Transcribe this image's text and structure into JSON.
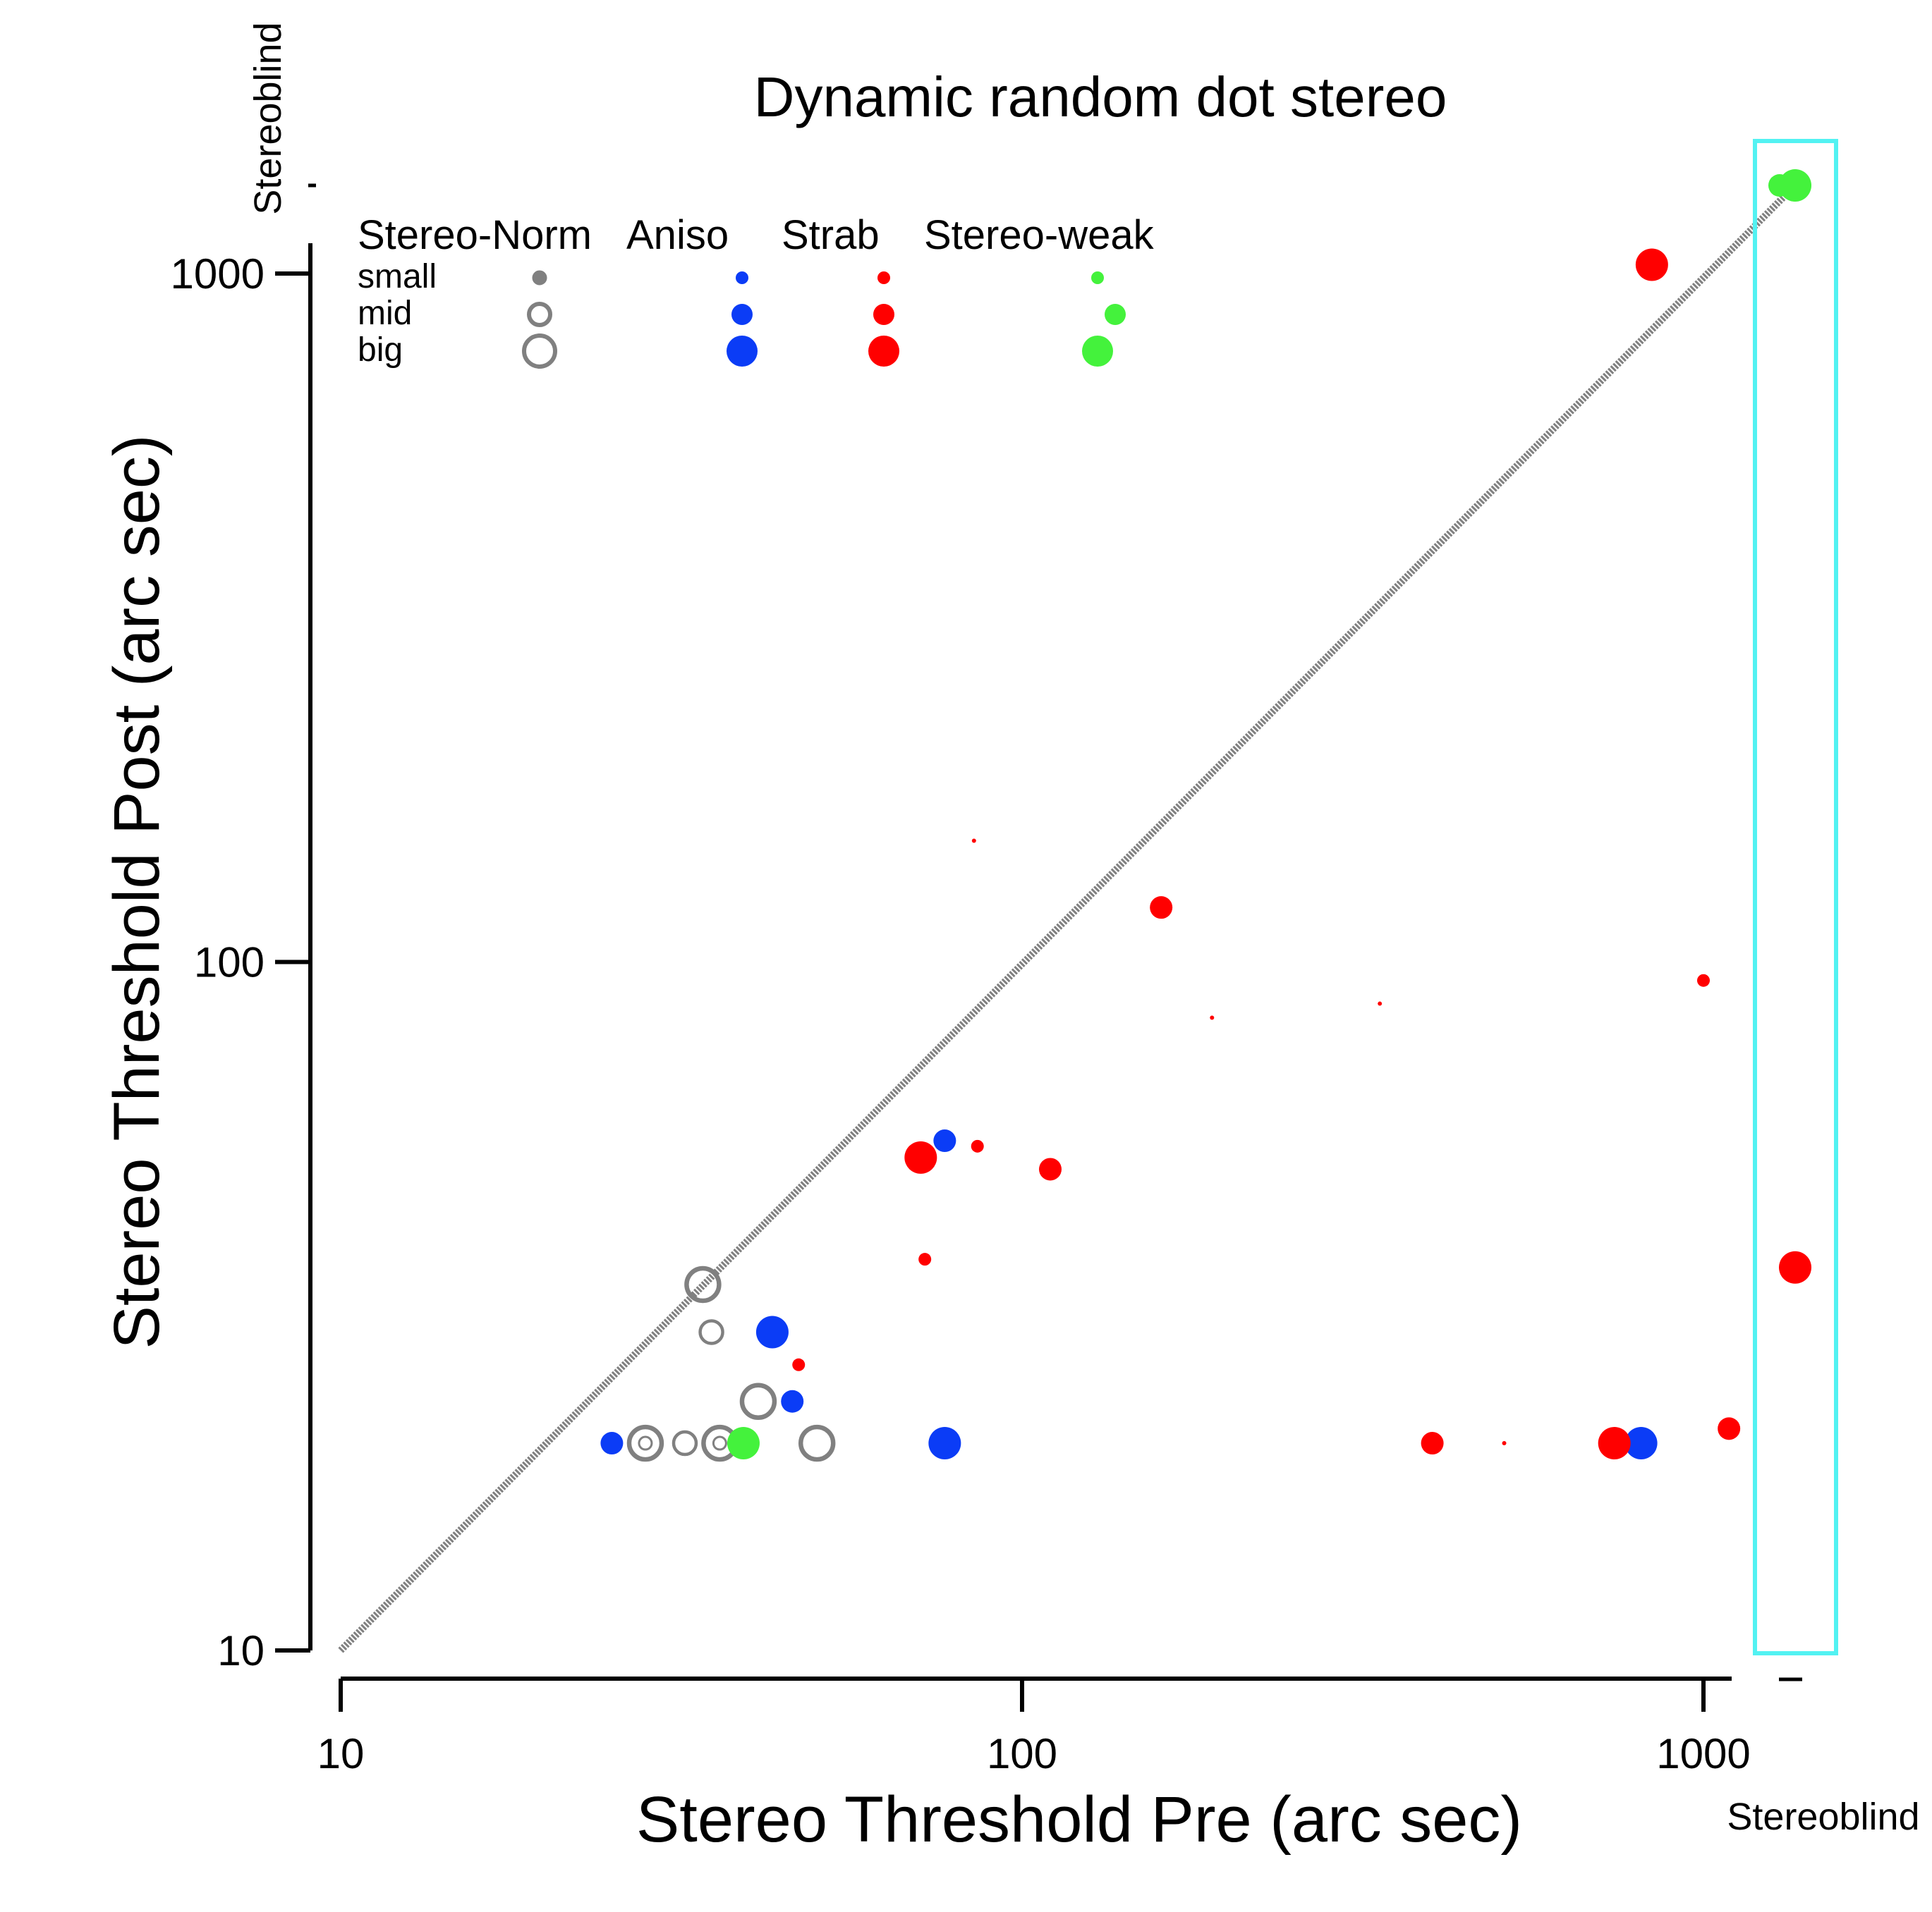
{
  "chart_data": {
    "type": "scatter",
    "title": "Dynamic random dot stereo",
    "xlabel": "Stereo Threshold Pre (arc sec)",
    "ylabel": "Stereo Threshold Post (arc sec)",
    "xscale": "log",
    "yscale": "log",
    "xlim": [
      10,
      1000
    ],
    "ylim": [
      10,
      1000
    ],
    "xticks": [
      "10",
      "100",
      "1000"
    ],
    "yticks": [
      "10",
      "100",
      "1000"
    ],
    "stereoblind_x_label": "Stereoblind",
    "stereoblind_y_label": "Stereoblind",
    "diagonal": "unity line",
    "legend": {
      "groups": [
        "Stereo-Norm",
        "Aniso",
        "Strab",
        "Stereo-weak"
      ],
      "sizes": [
        "small",
        "mid",
        "big"
      ],
      "placement": "top-left"
    },
    "colors": {
      "Stereo-Norm": "#808080",
      "Aniso": "#0b3cf6",
      "Strab": "#ff0000",
      "Stereo-weak": "#44f23c",
      "stereoblind_box": "#52f2f2",
      "unity_line": "#808080"
    },
    "series": [
      {
        "name": "Stereo-Norm",
        "marker": "open circle",
        "points": [
          {
            "x": 34,
            "y": 34,
            "size": "big"
          },
          {
            "x": 35,
            "y": 29,
            "size": "mid"
          },
          {
            "x": 41,
            "y": 23,
            "size": "big"
          },
          {
            "x": 28,
            "y": 20,
            "size": "big"
          },
          {
            "x": 28,
            "y": 20,
            "size": "small"
          },
          {
            "x": 32,
            "y": 20,
            "size": "mid"
          },
          {
            "x": 36,
            "y": 20,
            "size": "big"
          },
          {
            "x": 36,
            "y": 20,
            "size": "small"
          },
          {
            "x": 50,
            "y": 20,
            "size": "big"
          }
        ]
      },
      {
        "name": "Aniso",
        "marker": "filled circle",
        "points": [
          {
            "x": 25,
            "y": 20,
            "size": "mid"
          },
          {
            "x": 43,
            "y": 29,
            "size": "big"
          },
          {
            "x": 46,
            "y": 23,
            "size": "mid"
          },
          {
            "x": 77,
            "y": 55,
            "size": "mid"
          },
          {
            "x": 77,
            "y": 20,
            "size": "big"
          },
          {
            "x": 810,
            "y": 20,
            "size": "big"
          }
        ]
      },
      {
        "name": "Strab",
        "marker": "filled circle",
        "points": [
          {
            "x": 85,
            "y": 150,
            "size": "tiny"
          },
          {
            "x": 160,
            "y": 120,
            "size": "mid"
          },
          {
            "x": 190,
            "y": 83,
            "size": "tiny"
          },
          {
            "x": 335,
            "y": 87,
            "size": "tiny"
          },
          {
            "x": 1000,
            "y": 94,
            "size": "small"
          },
          {
            "x": 71,
            "y": 52,
            "size": "big"
          },
          {
            "x": 86,
            "y": 54,
            "size": "small"
          },
          {
            "x": 110,
            "y": 50,
            "size": "mid"
          },
          {
            "x": 72,
            "y": 37,
            "size": "small"
          },
          {
            "x": 47,
            "y": 26,
            "size": "small"
          },
          {
            "x": 400,
            "y": 20,
            "size": "mid"
          },
          {
            "x": 510,
            "y": 20,
            "size": "tiny"
          },
          {
            "x": 740,
            "y": 20,
            "size": "big"
          },
          {
            "x": 1090,
            "y": 21,
            "size": "mid"
          },
          {
            "x": 840,
            "y": 1030,
            "size": "big"
          },
          {
            "x": "Stereoblind",
            "y": 36,
            "size": "big"
          }
        ]
      },
      {
        "name": "Stereo-weak",
        "marker": "filled circle",
        "points": [
          {
            "x": 39,
            "y": 20,
            "size": "big"
          },
          {
            "x": "Stereoblind",
            "y": "Stereoblind",
            "size": "big"
          },
          {
            "x": "Stereoblind",
            "y": "Stereoblind",
            "size": "mid"
          }
        ]
      }
    ]
  }
}
